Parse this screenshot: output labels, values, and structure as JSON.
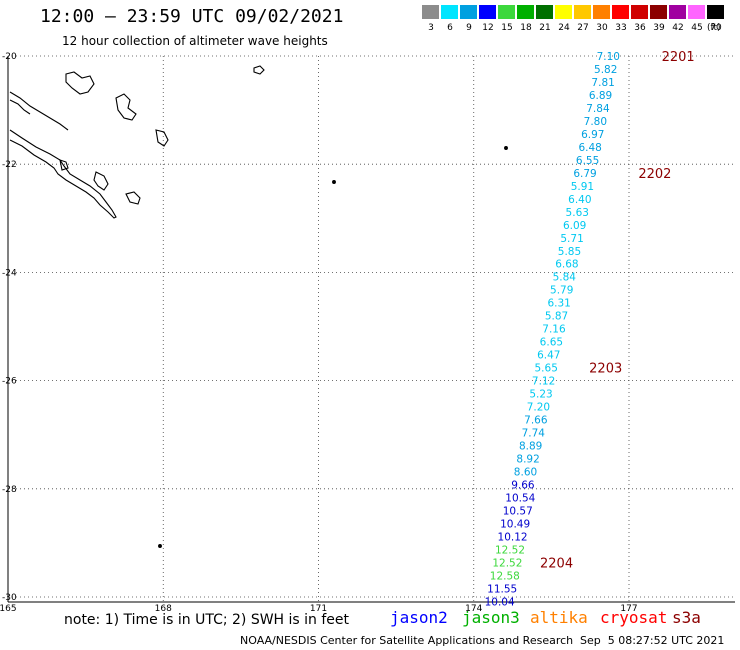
{
  "header": {
    "title": "12:00 – 23:59 UTC 09/02/2021",
    "subtitle": "12 hour collection of altimeter wave heights"
  },
  "legend": {
    "labels": [
      "3",
      "6",
      "9",
      "12",
      "15",
      "18",
      "21",
      "24",
      "27",
      "30",
      "33",
      "36",
      "39",
      "42",
      "45",
      "70"
    ],
    "colors": [
      "#8c8c8c",
      "#00e5ff",
      "#00a0e0",
      "#0000ff",
      "#3cd83c",
      "#00b000",
      "#007000",
      "#ffff00",
      "#ffc800",
      "#ff8000",
      "#ff0000",
      "#d00000",
      "#8c0000",
      "#a000a0",
      "#ff64ff",
      "#000000"
    ],
    "unit": "(ft)"
  },
  "axes": {
    "lat_labels": [
      "-20",
      "-22",
      "-24",
      "-26",
      "-28",
      "-30"
    ],
    "lon_labels": [
      "165",
      "168",
      "171",
      "174",
      "177"
    ]
  },
  "track_points": [
    {
      "v": "7.10",
      "lat": -20.0,
      "lon": 176.6,
      "c": "#00a0e0"
    },
    {
      "v": "5.82",
      "lat": -20.24,
      "lon": 176.55,
      "c": "#00a0e0"
    },
    {
      "v": "7.81",
      "lat": -20.48,
      "lon": 176.5,
      "c": "#00a0e0"
    },
    {
      "v": "6.89",
      "lat": -20.72,
      "lon": 176.45,
      "c": "#00a0e0"
    },
    {
      "v": "7.84",
      "lat": -20.96,
      "lon": 176.4,
      "c": "#00a0e0"
    },
    {
      "v": "7.80",
      "lat": -21.2,
      "lon": 176.35,
      "c": "#00a0e0"
    },
    {
      "v": "6.97",
      "lat": -21.44,
      "lon": 176.3,
      "c": "#00a0e0"
    },
    {
      "v": "6.48",
      "lat": -21.68,
      "lon": 176.25,
      "c": "#00a0e0"
    },
    {
      "v": "6.55",
      "lat": -21.92,
      "lon": 176.2,
      "c": "#00a0e0"
    },
    {
      "v": "6.79",
      "lat": -22.16,
      "lon": 176.15,
      "c": "#00a0e0"
    },
    {
      "v": "5.91",
      "lat": -22.4,
      "lon": 176.1,
      "c": "#00c8f0"
    },
    {
      "v": "6.40",
      "lat": -22.64,
      "lon": 176.05,
      "c": "#00c8f0"
    },
    {
      "v": "5.63",
      "lat": -22.88,
      "lon": 176.0,
      "c": "#00c8f0"
    },
    {
      "v": "6.09",
      "lat": -23.12,
      "lon": 175.95,
      "c": "#00c8f0"
    },
    {
      "v": "5.71",
      "lat": -23.36,
      "lon": 175.9,
      "c": "#00c8f0"
    },
    {
      "v": "5.85",
      "lat": -23.6,
      "lon": 175.85,
      "c": "#00c8f0"
    },
    {
      "v": "6.68",
      "lat": -23.84,
      "lon": 175.8,
      "c": "#00c8f0"
    },
    {
      "v": "5.84",
      "lat": -24.08,
      "lon": 175.75,
      "c": "#00c8f0"
    },
    {
      "v": "5.79",
      "lat": -24.32,
      "lon": 175.7,
      "c": "#00c8f0"
    },
    {
      "v": "6.31",
      "lat": -24.56,
      "lon": 175.65,
      "c": "#00c8f0"
    },
    {
      "v": "5.87",
      "lat": -24.8,
      "lon": 175.6,
      "c": "#00c8f0"
    },
    {
      "v": "7.16",
      "lat": -25.04,
      "lon": 175.55,
      "c": "#00c8f0"
    },
    {
      "v": "6.65",
      "lat": -25.28,
      "lon": 175.5,
      "c": "#00c8f0"
    },
    {
      "v": "6.47",
      "lat": -25.52,
      "lon": 175.45,
      "c": "#00c8f0"
    },
    {
      "v": "5.65",
      "lat": -25.76,
      "lon": 175.4,
      "c": "#00c8f0"
    },
    {
      "v": "7.12",
      "lat": -26.0,
      "lon": 175.35,
      "c": "#00c8f0"
    },
    {
      "v": "5.23",
      "lat": -26.24,
      "lon": 175.3,
      "c": "#00c8f0"
    },
    {
      "v": "7.20",
      "lat": -26.48,
      "lon": 175.25,
      "c": "#00c8f0"
    },
    {
      "v": "7.66",
      "lat": -26.72,
      "lon": 175.2,
      "c": "#00a0e0"
    },
    {
      "v": "7.74",
      "lat": -26.96,
      "lon": 175.15,
      "c": "#00a0e0"
    },
    {
      "v": "8.89",
      "lat": -27.2,
      "lon": 175.1,
      "c": "#00a0e0"
    },
    {
      "v": "8.92",
      "lat": -27.44,
      "lon": 175.05,
      "c": "#00a0e0"
    },
    {
      "v": "8.60",
      "lat": -27.68,
      "lon": 175.0,
      "c": "#00a0e0"
    },
    {
      "v": "9.66",
      "lat": -27.92,
      "lon": 174.95,
      "c": "#0000cc"
    },
    {
      "v": "10.54",
      "lat": -28.16,
      "lon": 174.9,
      "c": "#0000cc"
    },
    {
      "v": "10.57",
      "lat": -28.4,
      "lon": 174.85,
      "c": "#0000cc"
    },
    {
      "v": "10.49",
      "lat": -28.64,
      "lon": 174.8,
      "c": "#0000cc"
    },
    {
      "v": "10.12",
      "lat": -28.88,
      "lon": 174.75,
      "c": "#0000cc"
    },
    {
      "v": "12.52",
      "lat": -29.12,
      "lon": 174.7,
      "c": "#3cd83c"
    },
    {
      "v": "12.52",
      "lat": -29.36,
      "lon": 174.65,
      "c": "#3cd83c"
    },
    {
      "v": "12.58",
      "lat": -29.6,
      "lon": 174.6,
      "c": "#3cd83c"
    },
    {
      "v": "11.55",
      "lat": -29.84,
      "lon": 174.55,
      "c": "#0000cc"
    },
    {
      "v": "10.04",
      "lat": -30.08,
      "lon": 174.5,
      "c": "#0000cc"
    }
  ],
  "time_labels": [
    {
      "t": "2201",
      "lat": -20.0,
      "lon": 177.95
    },
    {
      "t": "2202",
      "lat": -22.16,
      "lon": 177.5
    },
    {
      "t": "2203",
      "lat": -25.76,
      "lon": 176.55
    },
    {
      "t": "2204",
      "lat": -29.36,
      "lon": 175.6
    }
  ],
  "notes": {
    "text": "note:  1) Time is in UTC;  2) SWH is in feet",
    "satellites": [
      {
        "name": "jason2",
        "color": "#0000ff"
      },
      {
        "name": "jason3",
        "color": "#00b000"
      },
      {
        "name": "altika",
        "color": "#ff8000"
      },
      {
        "name": "cryosat",
        "color": "#ff0000"
      },
      {
        "name": "s3a",
        "color": "#8c0000"
      }
    ]
  },
  "footer": {
    "left": "NOAA/NESDIS Center for Satellite Applications and Research",
    "right": "Sep  5 08:27:52 UTC 2021"
  }
}
